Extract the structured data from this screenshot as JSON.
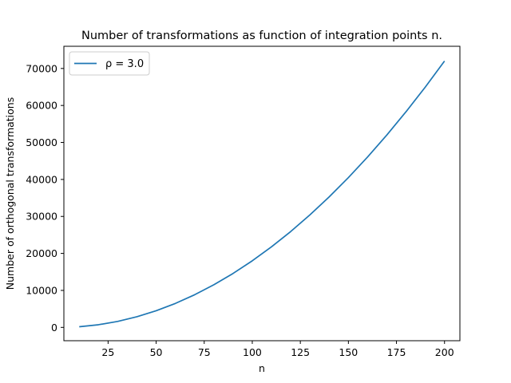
{
  "chart_data": {
    "type": "line",
    "title": "Number of transformations as function of integration points n.",
    "xlabel": "n",
    "ylabel": "Number of orthogonal transformations",
    "xlim": [
      2,
      208
    ],
    "ylim": [
      -3600,
      76000
    ],
    "xticks": [
      25,
      50,
      75,
      100,
      125,
      150,
      175,
      200
    ],
    "yticks": [
      0,
      10000,
      20000,
      30000,
      40000,
      50000,
      60000,
      70000
    ],
    "legend_position": "top-left",
    "grid": false,
    "series": [
      {
        "name": "ρ = 3.0",
        "color": "#1f77b4",
        "x": [
          10,
          20,
          30,
          40,
          50,
          60,
          70,
          80,
          90,
          100,
          110,
          120,
          130,
          140,
          150,
          160,
          170,
          180,
          190,
          200
        ],
        "y": [
          180,
          720,
          1620,
          2880,
          4500,
          6480,
          8820,
          11520,
          14580,
          18000,
          21780,
          25920,
          30420,
          35280,
          40500,
          46080,
          52020,
          58320,
          64980,
          72000
        ]
      }
    ]
  }
}
